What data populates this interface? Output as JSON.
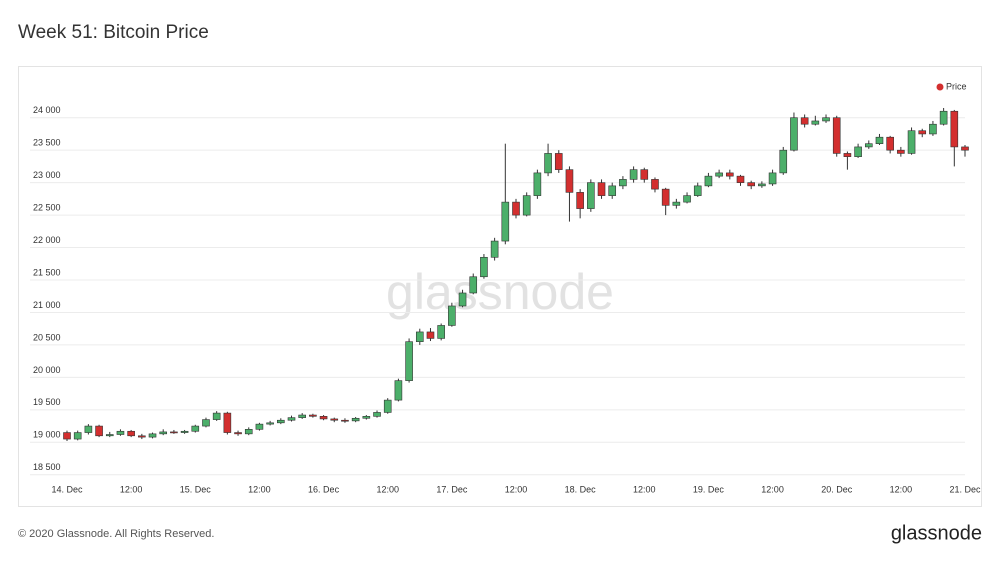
{
  "chart_data": {
    "type": "candlestick",
    "title": "Week 51: Bitcoin Price",
    "watermark": "glassnode",
    "legend": {
      "position": "top-right"
    },
    "grid": true,
    "categories": [
      "14. Dec",
      null,
      null,
      null,
      null,
      null,
      "12:00",
      null,
      null,
      null,
      null,
      null,
      "15. Dec",
      null,
      null,
      null,
      null,
      null,
      "12:00",
      null,
      null,
      null,
      null,
      null,
      "16. Dec",
      null,
      null,
      null,
      null,
      null,
      "12:00",
      null,
      null,
      null,
      null,
      null,
      "17. Dec",
      null,
      null,
      null,
      null,
      null,
      "12:00",
      null,
      null,
      null,
      null,
      null,
      "18. Dec",
      null,
      null,
      null,
      null,
      null,
      "12:00",
      null,
      null,
      null,
      null,
      null,
      "19. Dec",
      null,
      null,
      null,
      null,
      null,
      "12:00",
      null,
      null,
      null,
      null,
      null,
      "20. Dec",
      null,
      null,
      null,
      null,
      null,
      "12:00",
      null,
      null,
      null,
      null,
      null,
      "21. Dec"
    ],
    "series": [
      {
        "name": "Price",
        "color": "#d32f2f",
        "up_color": "#4caf6a",
        "down_color": "#d32f2f",
        "open": [
          19150,
          19050,
          19150,
          19250,
          19100,
          19120,
          19170,
          19100,
          19080,
          19130,
          19160,
          19150,
          19170,
          19250,
          19350,
          19450,
          19150,
          19130,
          19200,
          19280,
          19300,
          19340,
          19380,
          19420,
          19400,
          19360,
          19340,
          19330,
          19370,
          19400,
          19460,
          19650,
          19950,
          20550,
          20700,
          20600,
          20800,
          21100,
          21300,
          21550,
          21850,
          22100,
          22700,
          22500,
          22800,
          23150,
          23450,
          23200,
          22850,
          22600,
          23000,
          22800,
          22950,
          23050,
          23200,
          23050,
          22900,
          22650,
          22700,
          22800,
          22950,
          23100,
          23150,
          23100,
          23000,
          22950,
          22980,
          23150,
          23500,
          24000,
          23900,
          23950,
          24000,
          23450,
          23400,
          23550,
          23600,
          23700,
          23500,
          23450,
          23800,
          23750,
          23900,
          24100,
          23550
        ],
        "high": [
          19180,
          19180,
          19280,
          19270,
          19160,
          19200,
          19190,
          19130,
          19150,
          19200,
          19190,
          19190,
          19270,
          19380,
          19480,
          19470,
          19180,
          19230,
          19300,
          19330,
          19370,
          19410,
          19450,
          19440,
          19420,
          19380,
          19370,
          19390,
          19420,
          19490,
          19680,
          19980,
          20600,
          20750,
          20760,
          20830,
          21150,
          21350,
          21600,
          21900,
          22150,
          23600,
          22750,
          22850,
          23200,
          23600,
          23500,
          23250,
          22900,
          23050,
          23050,
          23000,
          23100,
          23250,
          23230,
          23080,
          22920,
          22750,
          22850,
          23000,
          23150,
          23200,
          23200,
          23120,
          23030,
          23020,
          23200,
          23550,
          24080,
          24050,
          24030,
          24050,
          24030,
          23480,
          23600,
          23650,
          23750,
          23720,
          23550,
          23850,
          23830,
          23950,
          24150,
          24120,
          23580
        ],
        "low": [
          19020,
          19030,
          19120,
          19080,
          19080,
          19100,
          19080,
          19050,
          19060,
          19110,
          19130,
          19130,
          19150,
          19230,
          19330,
          19120,
          19100,
          19110,
          19180,
          19260,
          19280,
          19320,
          19360,
          19380,
          19340,
          19310,
          19300,
          19310,
          19350,
          19380,
          19440,
          19630,
          19920,
          20500,
          20560,
          20570,
          20780,
          21080,
          21280,
          21520,
          21800,
          22050,
          22450,
          22480,
          22750,
          23100,
          23150,
          22400,
          22450,
          22550,
          22750,
          22750,
          22900,
          23000,
          23000,
          22850,
          22500,
          22600,
          22680,
          22780,
          22930,
          23070,
          23050,
          22950,
          22900,
          22920,
          22950,
          23120,
          23480,
          23850,
          23880,
          23920,
          23400,
          23200,
          23380,
          23520,
          23580,
          23450,
          23400,
          23430,
          23700,
          23720,
          23880,
          23250,
          23400
        ],
        "close": [
          19050,
          19150,
          19250,
          19100,
          19120,
          19170,
          19100,
          19080,
          19130,
          19160,
          19150,
          19170,
          19250,
          19350,
          19450,
          19150,
          19130,
          19200,
          19280,
          19300,
          19340,
          19380,
          19420,
          19400,
          19360,
          19340,
          19330,
          19370,
          19400,
          19460,
          19650,
          19950,
          20550,
          20700,
          20600,
          20800,
          21100,
          21300,
          21550,
          21850,
          22100,
          22700,
          22500,
          22800,
          23150,
          23450,
          23200,
          22850,
          22600,
          23000,
          22800,
          22950,
          23050,
          23200,
          23050,
          22900,
          22650,
          22700,
          22800,
          22950,
          23100,
          23150,
          23100,
          23000,
          22950,
          22980,
          23150,
          23500,
          24000,
          23900,
          23950,
          24000,
          23450,
          23400,
          23550,
          23600,
          23700,
          23500,
          23450,
          23800,
          23750,
          23900,
          24100,
          23550,
          23500
        ]
      }
    ],
    "ylim": [
      18450,
      24350
    ],
    "yticks": [
      {
        "value": 18500,
        "label": "18 500"
      },
      {
        "value": 19000,
        "label": "19 000"
      },
      {
        "value": 19500,
        "label": "19 500"
      },
      {
        "value": 20000,
        "label": "20 000"
      },
      {
        "value": 20500,
        "label": "20 500"
      },
      {
        "value": 21000,
        "label": "21 000"
      },
      {
        "value": 21500,
        "label": "21 500"
      },
      {
        "value": 22000,
        "label": "22 000"
      },
      {
        "value": 22500,
        "label": "22 500"
      },
      {
        "value": 23000,
        "label": "23 000"
      },
      {
        "value": 23500,
        "label": "23 500"
      },
      {
        "value": 24000,
        "label": "24 000"
      }
    ]
  },
  "footer": "© 2020 Glassnode. All Rights Reserved.",
  "brand": "glassnode"
}
